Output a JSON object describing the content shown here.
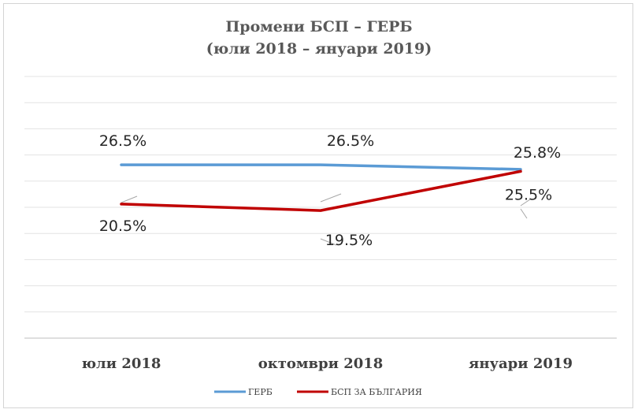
{
  "chart_data": {
    "type": "line",
    "title": "Промени БСП – ГЕРБ",
    "subtitle": "(юли 2018 – януари 2019)",
    "categories": [
      "юли 2018",
      "октомври 2018",
      "януари 2019"
    ],
    "series": [
      {
        "name": "ГЕРБ",
        "values": [
          26.5,
          26.5,
          25.8
        ],
        "labels": [
          "26.5%",
          "26.5%",
          "25.8%"
        ],
        "color": "#5b9bd5"
      },
      {
        "name": "БСП ЗА БЪЛГАРИЯ",
        "values": [
          20.5,
          19.5,
          25.5
        ],
        "labels": [
          "20.5%",
          "19.5%",
          "25.5%"
        ],
        "color": "#c00000"
      }
    ],
    "ylim": [
      0,
      40
    ],
    "grid": true,
    "legend_position": "bottom"
  }
}
